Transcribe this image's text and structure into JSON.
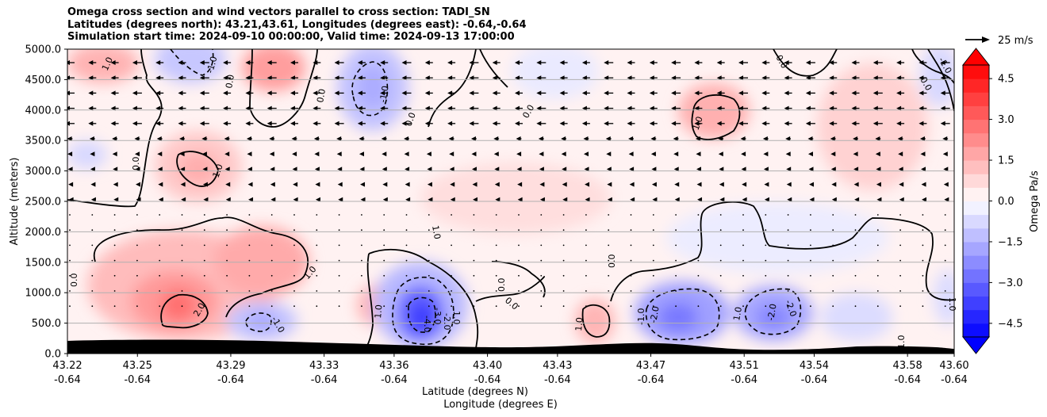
{
  "chart_data": {
    "type": "heatmap",
    "title_lines": [
      "Omega cross section and wind vectors parallel to cross section: TADI_SN",
      "Latitudes (degrees north): 43.21,43.61, Longitudes (degrees east): -0.64,-0.64",
      "Simulation start time: 2024-09-10 00:00:00, Valid time: 2024-09-13 17:00:00"
    ],
    "ylabel": "Altitude (meters)",
    "xlabel_lines": [
      "Latitude (degrees N)",
      "Longitude (degrees E)"
    ],
    "y_ticks": [
      "0.0",
      "500.0",
      "1000.0",
      "1500.0",
      "2000.0",
      "2500.0",
      "3000.0",
      "3500.0",
      "4000.0",
      "4500.0",
      "5000.0"
    ],
    "ylim": [
      0,
      5000
    ],
    "x_ticks": [
      {
        "lat": "43.22",
        "lon": "-0.64"
      },
      {
        "lat": "43.25",
        "lon": "-0.64"
      },
      {
        "lat": "43.29",
        "lon": "-0.64"
      },
      {
        "lat": "43.33",
        "lon": "-0.64"
      },
      {
        "lat": "43.36",
        "lon": "-0.64"
      },
      {
        "lat": "43.40",
        "lon": "-0.64"
      },
      {
        "lat": "43.43",
        "lon": "-0.64"
      },
      {
        "lat": "43.47",
        "lon": "-0.64"
      },
      {
        "lat": "43.51",
        "lon": "-0.64"
      },
      {
        "lat": "43.54",
        "lon": "-0.64"
      },
      {
        "lat": "43.58",
        "lon": "-0.64"
      },
      {
        "lat": "43.60",
        "lon": "-0.64"
      }
    ],
    "grid": "horizontal",
    "colorbar": {
      "label": "Omega Pa/s",
      "ticks": [
        "4.5",
        "3.0",
        "1.5",
        "0.0",
        "−1.5",
        "−3.0",
        "−4.5"
      ],
      "range": [
        -5,
        5
      ],
      "extend": "both",
      "cmap": "bwr"
    },
    "vector_key": "25 m/s",
    "contour_labels": [
      "1.0",
      "0.0",
      "-1.0",
      "2.0",
      "-2.0",
      "-3.0",
      "-4.0"
    ],
    "colors": {
      "positive": "#ff0000",
      "negative": "#0000ff",
      "terrain": "#000000"
    }
  }
}
